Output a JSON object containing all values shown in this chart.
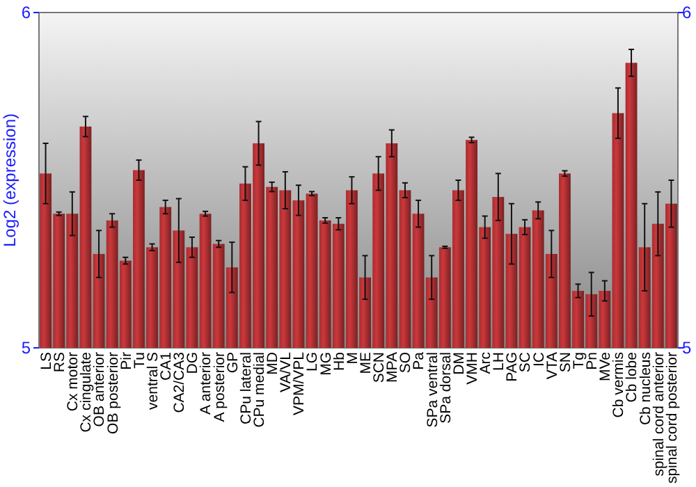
{
  "chart_data": {
    "type": "bar",
    "ylabel": "Log2 (expression)",
    "categories": [
      "LS",
      "RS",
      "Cx motor",
      "Cx cingulate",
      "OB anterior",
      "OB posterior",
      "Pir",
      "Tu",
      "ventral S",
      "CA1",
      "CA2/CA3",
      "DG",
      "A anterior",
      "A posterior",
      "GP",
      "CPu lateral",
      "CPu medial",
      "MD",
      "VA/VL",
      "VPM/VPL",
      "LG",
      "MG",
      "Hb",
      "M",
      "ME",
      "SCN",
      "MPA",
      "SO",
      "Pa",
      "SPa ventral",
      "SPa dorsal",
      "DM",
      "VMH",
      "Arc",
      "LH",
      "PAG",
      "SC",
      "IC",
      "VTA",
      "SN",
      "Tg",
      "Pn",
      "MVe",
      "Cb vermis",
      "Cb lobe",
      "Cb nucleus",
      "spinal cord anterior",
      "spinal cord posterior"
    ],
    "values": [
      5.52,
      5.4,
      5.4,
      5.66,
      5.28,
      5.38,
      5.26,
      5.53,
      5.3,
      5.42,
      5.35,
      5.3,
      5.4,
      5.31,
      5.24,
      5.49,
      5.61,
      5.48,
      5.47,
      5.44,
      5.46,
      5.38,
      5.37,
      5.47,
      5.21,
      5.52,
      5.61,
      5.47,
      5.4,
      5.21,
      5.3,
      5.47,
      5.62,
      5.36,
      5.45,
      5.34,
      5.36,
      5.41,
      5.28,
      5.52,
      5.17,
      5.16,
      5.17,
      5.7,
      5.85,
      5.3,
      5.37,
      5.43
    ],
    "errors": [
      0.09,
      0.005,
      0.065,
      0.03,
      0.07,
      0.02,
      0.01,
      0.03,
      0.01,
      0.02,
      0.095,
      0.03,
      0.007,
      0.01,
      0.075,
      0.05,
      0.065,
      0.014,
      0.055,
      0.045,
      0.006,
      0.008,
      0.018,
      0.04,
      0.065,
      0.05,
      0.04,
      0.022,
      0.04,
      0.065,
      0.003,
      0.03,
      0.008,
      0.033,
      0.07,
      0.09,
      0.022,
      0.025,
      0.07,
      0.008,
      0.02,
      0.065,
      0.03,
      0.075,
      0.04,
      0.13,
      0.095,
      0.07
    ],
    "color": "#b83235",
    "ylim": [
      5,
      6
    ],
    "yticks": [
      5,
      6
    ],
    "y2lim": [
      5,
      6
    ],
    "y2ticks": [
      5,
      6
    ],
    "grid": false
  }
}
